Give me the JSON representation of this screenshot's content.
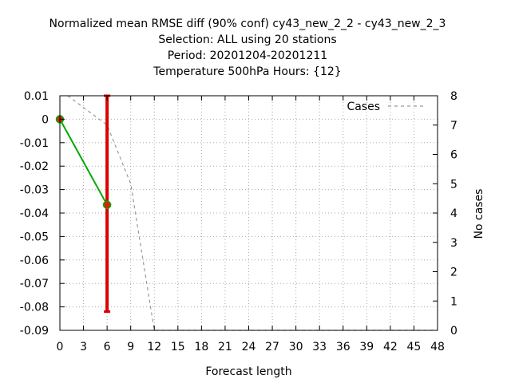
{
  "chart_data": {
    "type": "line",
    "title_lines": [
      "Normalized mean RMSE diff (90% conf) cy43_new_2_2 - cy43_new_2_3",
      "Selection: ALL using    20 stations",
      "Period: 20201204-20201211",
      "Temperature 500hPa   Hours: {12}"
    ],
    "xlabel": "Forecast length",
    "ylabel": "",
    "y2label": "No cases",
    "xlim": [
      0,
      48
    ],
    "ylim": [
      -0.09,
      0.01
    ],
    "y2lim": [
      0,
      8
    ],
    "xticks": [
      0,
      3,
      6,
      9,
      12,
      15,
      18,
      21,
      24,
      27,
      30,
      33,
      36,
      39,
      42,
      45,
      48
    ],
    "yticks": [
      "0.01",
      "0",
      "-0.01",
      "-0.02",
      "-0.03",
      "-0.04",
      "-0.05",
      "-0.06",
      "-0.07",
      "-0.08",
      "-0.09"
    ],
    "y2ticks": [
      8,
      7,
      6,
      5,
      4,
      3,
      2,
      1,
      0
    ],
    "grid": true,
    "legend_position": "top-right",
    "series": [
      {
        "name": "",
        "axis": "y1",
        "color": "#00aa00",
        "marker_color": "#dd2200",
        "x": [
          0,
          6
        ],
        "y": [
          0.0,
          -0.0365
        ]
      },
      {
        "name": "Cases",
        "axis": "y2",
        "style": "dashed",
        "color": "#999999",
        "x": [
          1,
          3,
          6,
          9,
          12,
          48
        ],
        "y": [
          8,
          7.6,
          7,
          5,
          0,
          0
        ]
      }
    ],
    "error_bars": [
      {
        "x": 6,
        "low": -0.082,
        "high": 0.01,
        "color": "#dd0000"
      }
    ]
  }
}
